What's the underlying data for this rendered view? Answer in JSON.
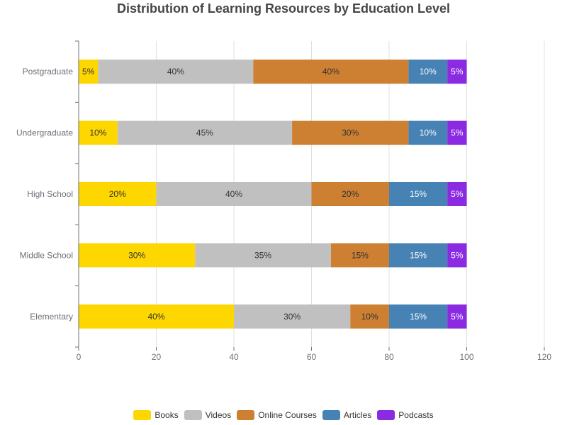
{
  "chart_data": {
    "type": "bar",
    "orientation": "horizontal",
    "stacked": true,
    "title": "Distribution of Learning Resources by Education Level",
    "xlabel": "",
    "ylabel": "",
    "categories": [
      "Elementary",
      "Middle School",
      "High School",
      "Undergraduate",
      "Postgraduate"
    ],
    "series": [
      {
        "name": "Books",
        "color": "#FFD700",
        "values": [
          40,
          30,
          20,
          10,
          5
        ],
        "label_color": "#333333"
      },
      {
        "name": "Videos",
        "color": "#C0C0C0",
        "values": [
          30,
          35,
          40,
          45,
          40
        ],
        "label_color": "#333333"
      },
      {
        "name": "Online Courses",
        "color": "#CD7F32",
        "values": [
          10,
          15,
          20,
          30,
          40
        ],
        "label_color": "#333333"
      },
      {
        "name": "Articles",
        "color": "#4682B4",
        "values": [
          15,
          15,
          15,
          10,
          10
        ],
        "label_color": "#ffffff"
      },
      {
        "name": "Podcasts",
        "color": "#8A2BE2",
        "values": [
          5,
          5,
          5,
          5,
          5
        ],
        "label_color": "#ffffff"
      }
    ],
    "data_label_suffix": "%",
    "xlim": [
      0,
      120
    ],
    "xticks": [
      0,
      20,
      40,
      60,
      80,
      100,
      120
    ],
    "grid": true,
    "legend_position": "bottom"
  }
}
